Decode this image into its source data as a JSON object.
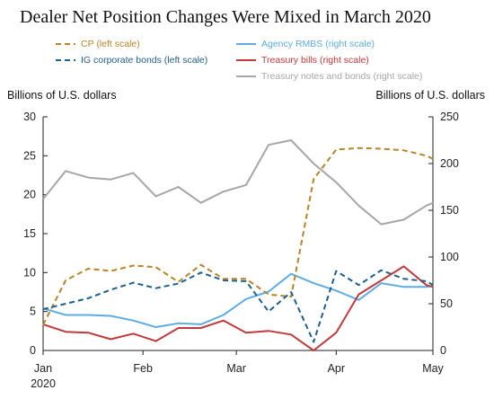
{
  "chart_data": {
    "type": "line",
    "title": "Dealer Net Position Changes Were Mixed in March 2020",
    "left_axis_title": "Billions of U.S. dollars",
    "right_axis_title": "Billions of U.S. dollars",
    "left_ylim": [
      0,
      30
    ],
    "left_ticks": [
      "0",
      "5",
      "10",
      "15",
      "20",
      "25",
      "30"
    ],
    "right_ylim": [
      0,
      250
    ],
    "right_ticks": [
      "0",
      "50",
      "100",
      "150",
      "200",
      "250"
    ],
    "x_tick_labels": [
      {
        "label": "Jan",
        "sublabel": "2020",
        "week": 0
      },
      {
        "label": "Feb",
        "week": 4.43
      },
      {
        "label": "Mar",
        "week": 8.57
      },
      {
        "label": "Apr",
        "week": 13.0
      },
      {
        "label": "May",
        "week": 17.29
      }
    ],
    "xlim": [
      0,
      17.29
    ],
    "grid": false,
    "legend_position": "top",
    "series": [
      {
        "name": "CP (left scale)",
        "axis": "left",
        "color": "#B8842A",
        "dash": "6,4",
        "x": [
          0,
          1,
          2,
          3,
          4,
          5,
          6,
          7,
          8,
          9,
          10,
          11,
          12,
          13,
          14,
          15,
          16,
          17,
          17.29
        ],
        "values": [
          3.3,
          9.0,
          10.5,
          10.2,
          10.9,
          10.7,
          8.8,
          11.0,
          9.2,
          9.2,
          7.2,
          6.9,
          22.0,
          25.8,
          26.0,
          25.9,
          25.7,
          25.0,
          24.6
        ]
      },
      {
        "name": "IG corporate bonds (left scale)",
        "axis": "left",
        "color": "#1F5F8B",
        "dash": "6,4",
        "x": [
          0,
          1,
          2,
          3,
          4,
          5,
          6,
          7,
          8,
          9,
          10,
          11,
          12,
          13,
          14,
          15,
          16,
          17,
          17.29
        ],
        "values": [
          5.3,
          6.0,
          6.7,
          7.8,
          8.7,
          8.0,
          8.6,
          10.0,
          9.0,
          8.9,
          5.0,
          7.5,
          1.1,
          10.2,
          8.4,
          10.3,
          9.2,
          8.9,
          8.4
        ]
      },
      {
        "name": "Agency RMBS (right scale)",
        "axis": "right",
        "color": "#5DADE2",
        "x": [
          0,
          1,
          2,
          3,
          4,
          5,
          6,
          7,
          8,
          9,
          10,
          11,
          12,
          13,
          14,
          15,
          16,
          17,
          17.29
        ],
        "values": [
          45,
          38,
          38,
          37,
          32,
          25,
          29,
          28,
          38,
          55,
          63,
          82,
          72,
          64,
          54,
          72,
          68,
          68,
          69
        ]
      },
      {
        "name": "Treasury bills (right scale)",
        "axis": "right",
        "color": "#C0393B",
        "x": [
          0,
          1,
          2,
          3,
          4,
          5,
          6,
          7,
          8,
          9,
          10,
          11,
          12,
          13,
          14,
          15,
          16,
          17,
          17.29
        ],
        "values": [
          28,
          20,
          19,
          12,
          18,
          10,
          24,
          24,
          32,
          19,
          21,
          17,
          0,
          19,
          60,
          75,
          90,
          70,
          68
        ]
      },
      {
        "name": "Treasury notes and bonds (right scale)",
        "axis": "right",
        "color": "#A6A6A6",
        "x": [
          0,
          1,
          2,
          3,
          4,
          5,
          6,
          7,
          8,
          9,
          10,
          11,
          12,
          13,
          14,
          15,
          16,
          17,
          17.29
        ],
        "values": [
          162,
          192,
          185,
          183,
          190,
          165,
          175,
          158,
          170,
          177,
          220,
          225,
          200,
          180,
          155,
          135,
          140,
          155,
          158
        ]
      }
    ]
  }
}
